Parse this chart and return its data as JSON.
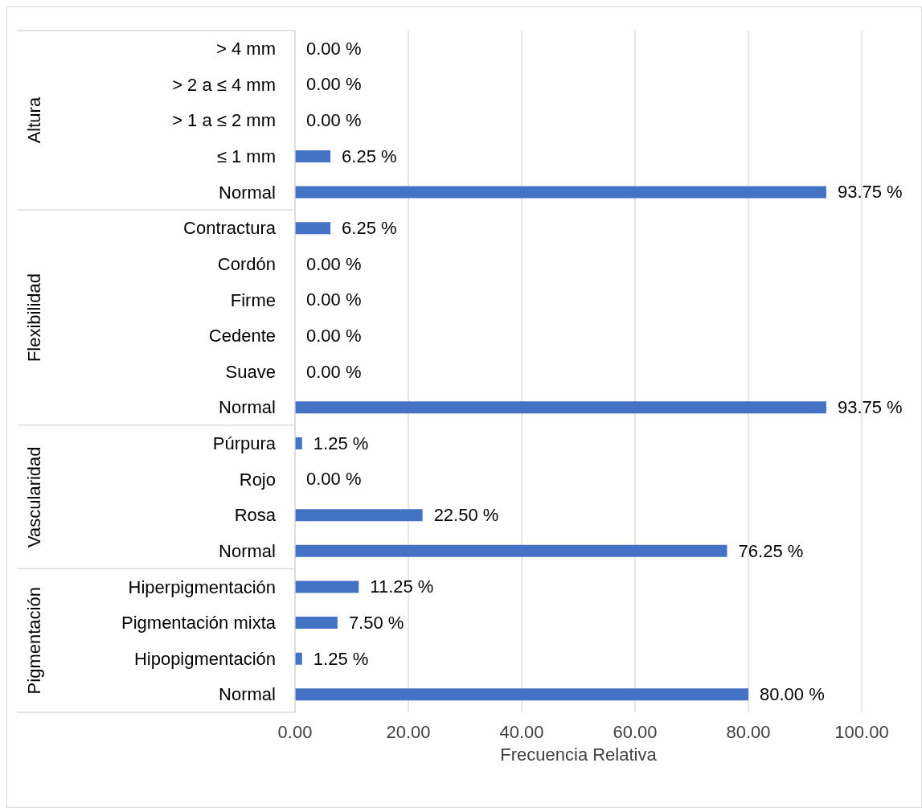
{
  "chart_data": {
    "type": "bar",
    "orientation": "horizontal",
    "xlabel": "Frecuencia Relativa",
    "categories": [
      "> 4 mm",
      "> 2 a ≤ 4 mm",
      "> 1 a ≤ 2 mm",
      "≤ 1 mm",
      "Normal",
      "Contractura",
      "Cordón",
      "Firme",
      "Cedente",
      "Suave",
      "Normal",
      "Púrpura",
      "Rojo",
      "Rosa",
      "Normal",
      "Hiperpigmentación",
      "Pigmentación mixta",
      "Hipopigmentación",
      "Normal"
    ],
    "values": [
      0,
      0,
      0,
      6.25,
      93.75,
      6.25,
      0,
      0,
      0,
      0,
      93.75,
      1.25,
      0,
      22.5,
      76.25,
      11.25,
      7.5,
      1.25,
      80
    ],
    "value_labels": [
      "0.00 %",
      "0.00 %",
      "0.00 %",
      "6.25 %",
      "93.75 %",
      "6.25 %",
      "0.00 %",
      "0.00 %",
      "0.00 %",
      "0.00 %",
      "93.75 %",
      "1.25 %",
      "0.00 %",
      "22.50 %",
      "76.25 %",
      "11.25 %",
      "7.50 %",
      "1.25 %",
      "80.00 %"
    ],
    "color": "#4472c4",
    "xlim": [
      0,
      100
    ],
    "xticks": [
      {
        "value": 0,
        "label": "0.00"
      },
      {
        "value": 20,
        "label": "20.00"
      },
      {
        "value": 40,
        "label": "40.00"
      },
      {
        "value": 60,
        "label": "60.00"
      },
      {
        "value": 80,
        "label": "80.00"
      },
      {
        "value": 100,
        "label": "100.00"
      }
    ],
    "grid": "x",
    "annotations": [
      "Altura",
      "Flexibilidad",
      "Vascularidad",
      "Pigmentación"
    ]
  }
}
